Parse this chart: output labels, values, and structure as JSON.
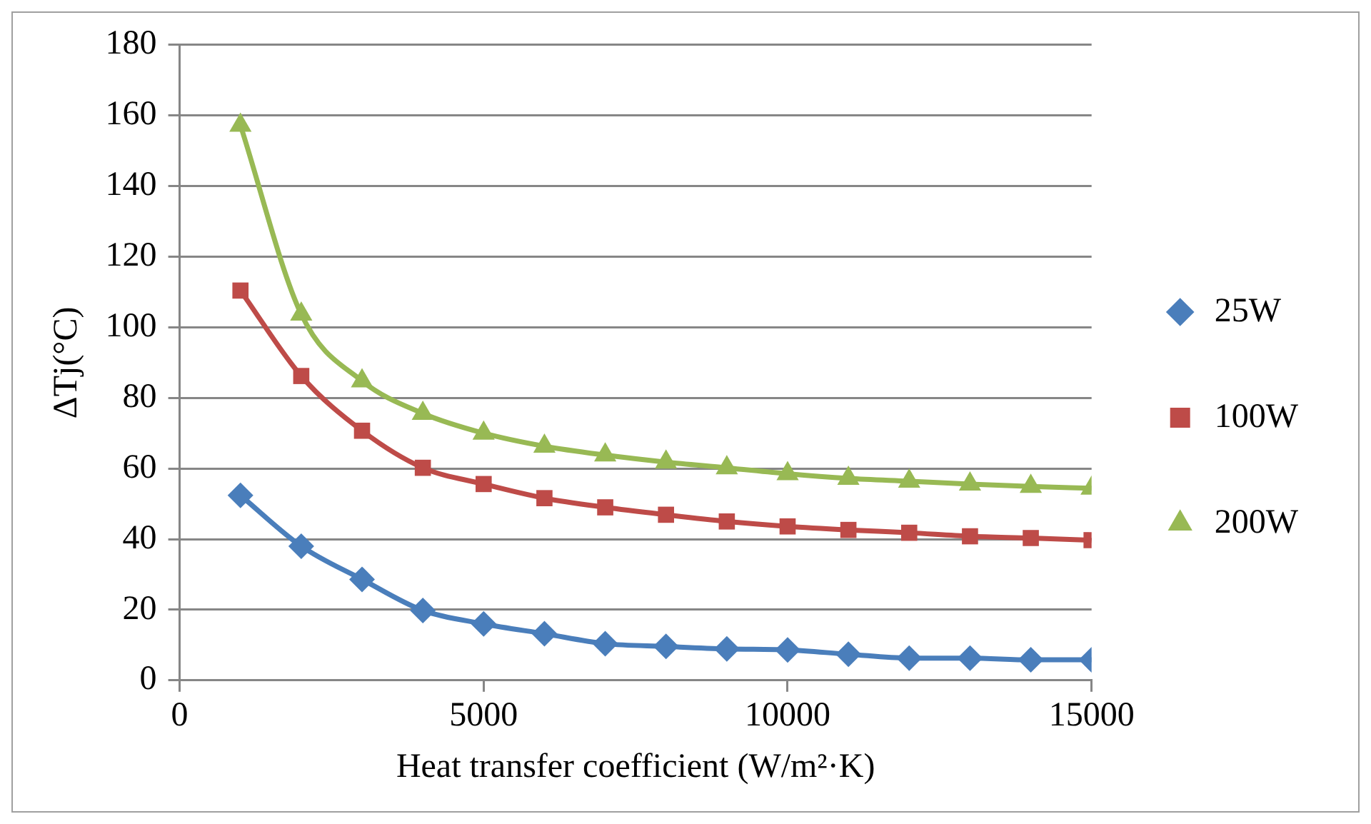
{
  "chart_data": {
    "type": "line",
    "xlabel": "Heat transfer coefficient (W/m²·K)",
    "ylabel": "ΔTj(°C)",
    "x": [
      1000,
      2000,
      3000,
      4000,
      5000,
      6000,
      7000,
      8000,
      9000,
      10000,
      11000,
      12000,
      13000,
      14000,
      15000
    ],
    "series": [
      {
        "name": "25W",
        "color": "#4a7ebb",
        "marker": "diamond",
        "values": [
          52.4,
          38,
          28.6,
          19.8,
          16,
          13.2,
          10.4,
          9.6,
          8.9,
          8.6,
          7.4,
          6.3,
          6.3,
          5.8,
          5.8
        ]
      },
      {
        "name": "100W",
        "color": "#be4b48",
        "marker": "square",
        "values": [
          110.4,
          86.2,
          70.7,
          60.2,
          55.6,
          51.6,
          49,
          46.9,
          45,
          43.6,
          42.6,
          41.8,
          40.8,
          40.3,
          39.7
        ]
      },
      {
        "name": "200W",
        "color": "#98b954",
        "marker": "triangle",
        "values": [
          157.2,
          103.7,
          84.8,
          75.6,
          70,
          66.3,
          63.8,
          61.8,
          60.2,
          58.5,
          57.2,
          56.4,
          55.6,
          54.9,
          54.4
        ]
      }
    ],
    "xlim": [
      0,
      15000
    ],
    "xticks": [
      0,
      5000,
      10000,
      15000
    ],
    "ylim": [
      0,
      180
    ],
    "yticks": [
      0,
      20,
      40,
      60,
      80,
      100,
      120,
      140,
      160,
      180
    ],
    "grid": "y",
    "legend": "right",
    "line_style": "solid"
  }
}
